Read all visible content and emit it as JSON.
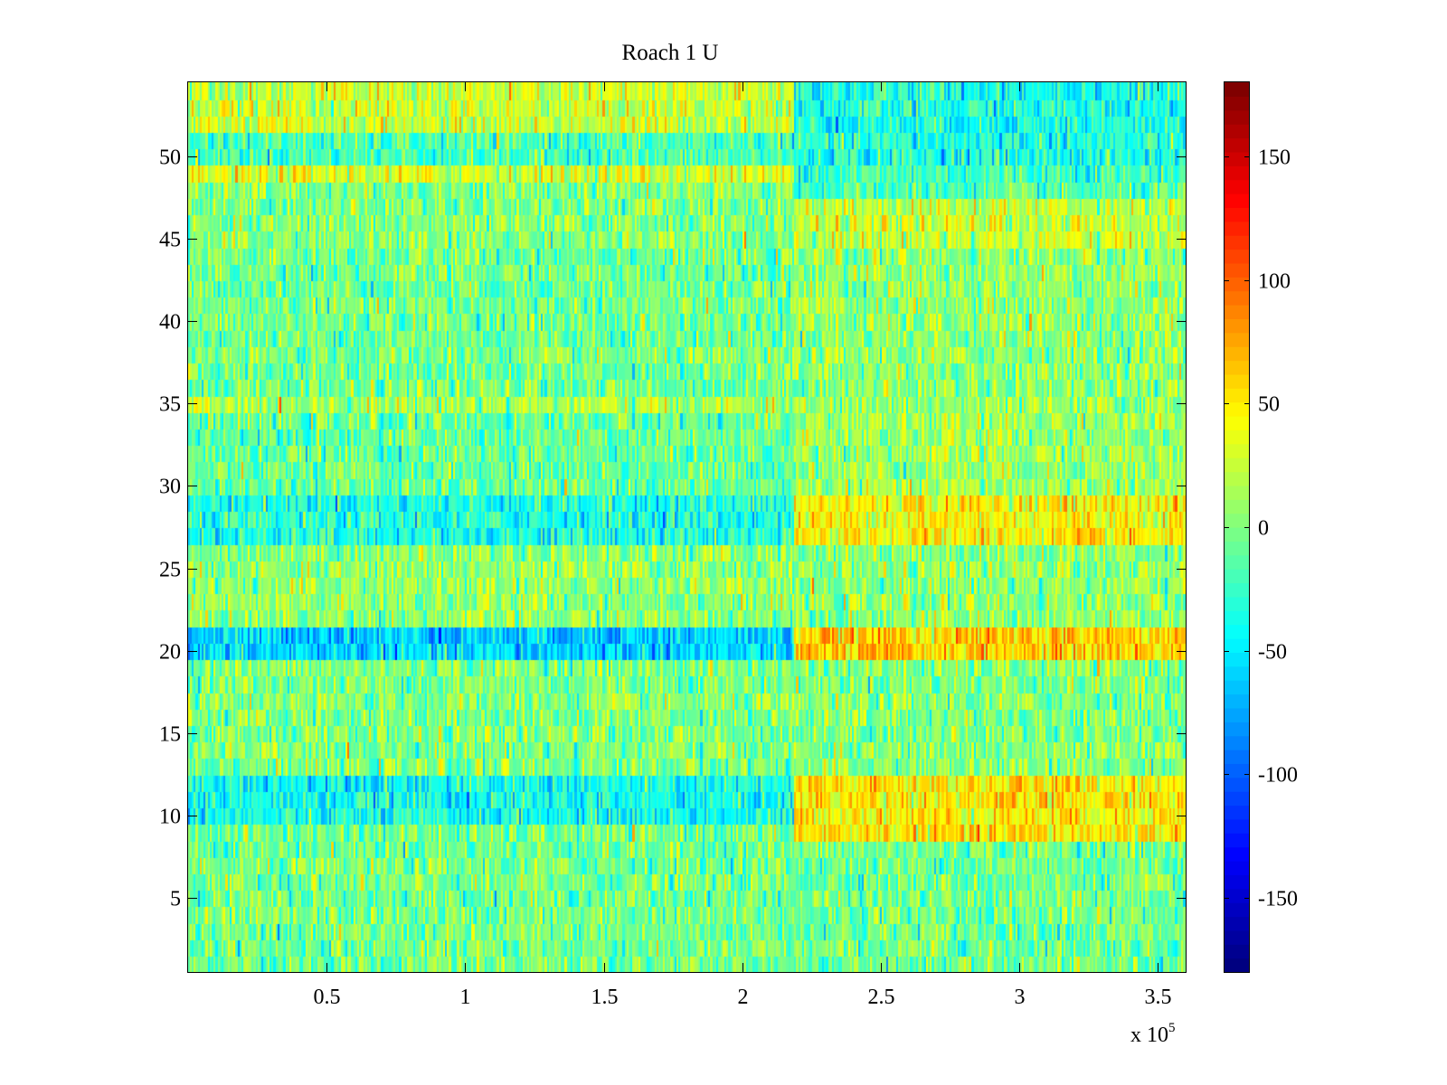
{
  "chart_data": {
    "type": "heatmap",
    "title": "Roach 1 U",
    "xlabel": "",
    "ylabel": "",
    "x_multiplier_label": "x 10",
    "x_multiplier_exponent": "5",
    "xlim": [
      0,
      3.6
    ],
    "ylim": [
      0.5,
      54.5
    ],
    "x_ticks": [
      0.5,
      1,
      1.5,
      2,
      2.5,
      3,
      3.5
    ],
    "x_tick_labels": [
      "0.5",
      "1",
      "1.5",
      "2",
      "2.5",
      "3",
      "3.5"
    ],
    "y_ticks": [
      5,
      10,
      15,
      20,
      25,
      30,
      35,
      40,
      45,
      50
    ],
    "y_tick_labels": [
      "5",
      "10",
      "15",
      "20",
      "25",
      "30",
      "35",
      "40",
      "45",
      "50"
    ],
    "rows": 54,
    "colormap": "jet",
    "colorbar": {
      "clim": [
        -180,
        180
      ],
      "ticks": [
        -150,
        -100,
        -50,
        0,
        50,
        100,
        150
      ],
      "tick_labels": [
        "-150",
        "-100",
        "-50",
        "0",
        "50",
        "100",
        "150"
      ]
    },
    "change_point_x": 2.19,
    "row_means_before_change": [
      {
        "rows": [
          1,
          9
        ],
        "mean": -5
      },
      {
        "rows": [
          10,
          12
        ],
        "mean": -40
      },
      {
        "rows": [
          13,
          19
        ],
        "mean": 0
      },
      {
        "rows": [
          20,
          21
        ],
        "mean": -60
      },
      {
        "rows": [
          22,
          26
        ],
        "mean": 5
      },
      {
        "rows": [
          27,
          29
        ],
        "mean": -35
      },
      {
        "rows": [
          30,
          34
        ],
        "mean": -10
      },
      {
        "rows": [
          35,
          35
        ],
        "mean": 15
      },
      {
        "rows": [
          36,
          44
        ],
        "mean": -5
      },
      {
        "rows": [
          45,
          48
        ],
        "mean": 0
      },
      {
        "rows": [
          49,
          49
        ],
        "mean": 30
      },
      {
        "rows": [
          50,
          51
        ],
        "mean": -20
      },
      {
        "rows": [
          52,
          54
        ],
        "mean": 25
      }
    ],
    "row_means_after_change": [
      {
        "rows": [
          1,
          8
        ],
        "mean": -5
      },
      {
        "rows": [
          9,
          12
        ],
        "mean": 50
      },
      {
        "rows": [
          13,
          19
        ],
        "mean": 0
      },
      {
        "rows": [
          20,
          21
        ],
        "mean": 60
      },
      {
        "rows": [
          22,
          26
        ],
        "mean": 5
      },
      {
        "rows": [
          27,
          29
        ],
        "mean": 45
      },
      {
        "rows": [
          30,
          34
        ],
        "mean": 10
      },
      {
        "rows": [
          35,
          44
        ],
        "mean": 5
      },
      {
        "rows": [
          45,
          47
        ],
        "mean": 25
      },
      {
        "rows": [
          48,
          49
        ],
        "mean": -20
      },
      {
        "rows": [
          50,
          54
        ],
        "mean": -35
      }
    ],
    "noise_sd": 22
  }
}
